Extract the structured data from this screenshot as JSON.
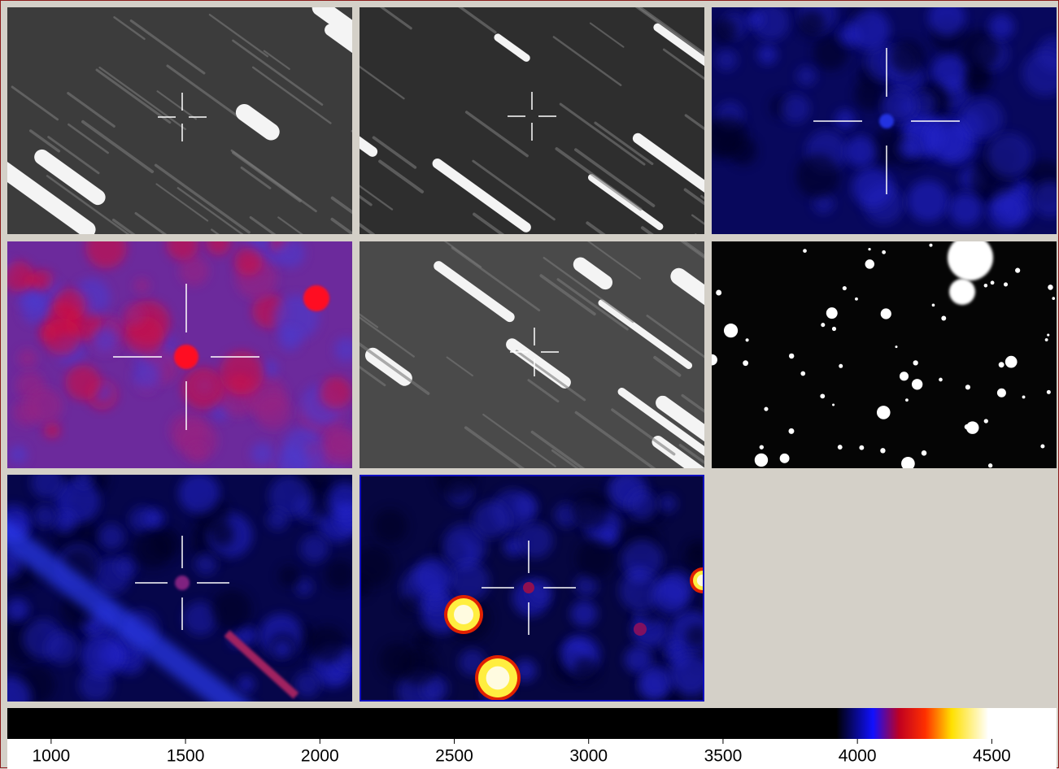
{
  "colorbar": {
    "xlim": [
      837,
      4741
    ],
    "ticks": [
      1000,
      1500,
      2000,
      2500,
      3000,
      3500,
      4000,
      4500
    ]
  }
}
